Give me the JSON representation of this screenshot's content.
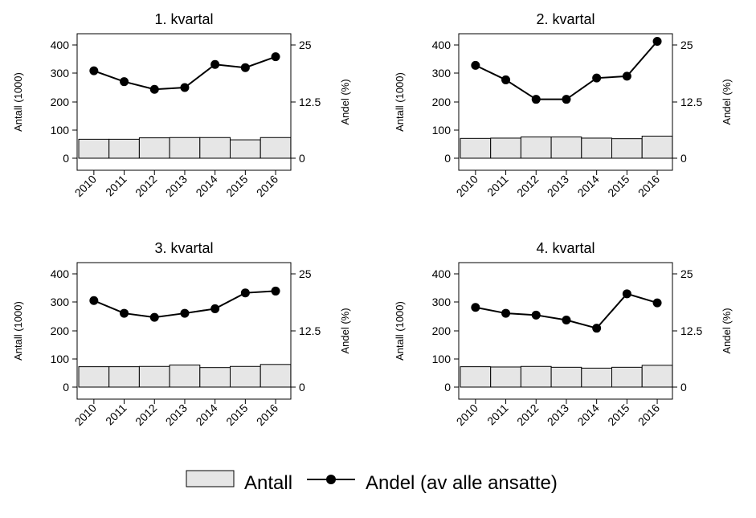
{
  "chart_data": [
    {
      "type": "bar+line",
      "title": "1. kvartal",
      "categories": [
        "2010",
        "2011",
        "2012",
        "2013",
        "2014",
        "2015",
        "2016"
      ],
      "ylabel_left": "Antall (1000)",
      "ylabel_right": "Andel (%)",
      "ylim_left": [
        0,
        400
      ],
      "yticks_left": [
        "0",
        "100",
        "200",
        "300",
        "400"
      ],
      "ylim_right": [
        0,
        25
      ],
      "yticks_right": [
        "0",
        "12.5",
        "25"
      ],
      "series": [
        {
          "name": "Antall",
          "type": "bar",
          "axis": "left",
          "values": [
            67,
            67,
            72,
            73,
            73,
            65,
            73
          ]
        },
        {
          "name": "Andel (av alle ansatte)",
          "type": "line",
          "axis": "right",
          "values": [
            19.3,
            16.9,
            15.2,
            15.6,
            20.7,
            20.0,
            22.4
          ]
        }
      ]
    },
    {
      "type": "bar+line",
      "title": "2. kvartal",
      "categories": [
        "2010",
        "2011",
        "2012",
        "2013",
        "2014",
        "2015",
        "2016"
      ],
      "ylabel_left": "Antall (1000)",
      "ylabel_right": "Andel (%)",
      "ylim_left": [
        0,
        400
      ],
      "yticks_left": [
        "0",
        "100",
        "200",
        "300",
        "400"
      ],
      "ylim_right": [
        0,
        25
      ],
      "yticks_right": [
        "0",
        "12.5",
        "25"
      ],
      "series": [
        {
          "name": "Antall",
          "type": "bar",
          "axis": "left",
          "values": [
            70,
            71,
            75,
            75,
            71,
            69,
            78
          ]
        },
        {
          "name": "Andel (av alle ansatte)",
          "type": "line",
          "axis": "right",
          "values": [
            20.5,
            17.3,
            13.0,
            13.0,
            17.7,
            18.1,
            25.8
          ]
        }
      ]
    },
    {
      "type": "bar+line",
      "title": "3. kvartal",
      "categories": [
        "2010",
        "2011",
        "2012",
        "2013",
        "2014",
        "2015",
        "2016"
      ],
      "ylabel_left": "Antall (1000)",
      "ylabel_right": "Andel (%)",
      "ylim_left": [
        0,
        400
      ],
      "yticks_left": [
        "0",
        "100",
        "200",
        "300",
        "400"
      ],
      "ylim_right": [
        0,
        25
      ],
      "yticks_right": [
        "0",
        "12.5",
        "25"
      ],
      "series": [
        {
          "name": "Antall",
          "type": "bar",
          "axis": "left",
          "values": [
            72,
            72,
            73,
            78,
            69,
            73,
            80
          ]
        },
        {
          "name": "Andel (av alle ansatte)",
          "type": "line",
          "axis": "right",
          "values": [
            19.1,
            16.3,
            15.4,
            16.3,
            17.3,
            20.8,
            21.2
          ]
        }
      ]
    },
    {
      "type": "bar+line",
      "title": "4. kvartal",
      "categories": [
        "2010",
        "2011",
        "2012",
        "2013",
        "2014",
        "2015",
        "2016"
      ],
      "ylabel_left": "Antall (1000)",
      "ylabel_right": "Andel (%)",
      "ylim_left": [
        0,
        400
      ],
      "yticks_left": [
        "0",
        "100",
        "200",
        "300",
        "400"
      ],
      "ylim_right": [
        0,
        25
      ],
      "yticks_right": [
        "0",
        "12.5",
        "25"
      ],
      "series": [
        {
          "name": "Antall",
          "type": "bar",
          "axis": "left",
          "values": [
            72,
            71,
            73,
            70,
            67,
            70,
            77
          ]
        },
        {
          "name": "Andel (av alle ansatte)",
          "type": "line",
          "axis": "right",
          "values": [
            17.6,
            16.3,
            15.9,
            14.8,
            13.0,
            20.6,
            18.6
          ]
        }
      ]
    }
  ],
  "legend": {
    "bar_label": "Antall",
    "line_label": "Andel (av alle ansatte)",
    "placement": "bottom-center"
  },
  "colors": {
    "bar_fill": "#e6e6e6",
    "stroke": "#000000"
  }
}
